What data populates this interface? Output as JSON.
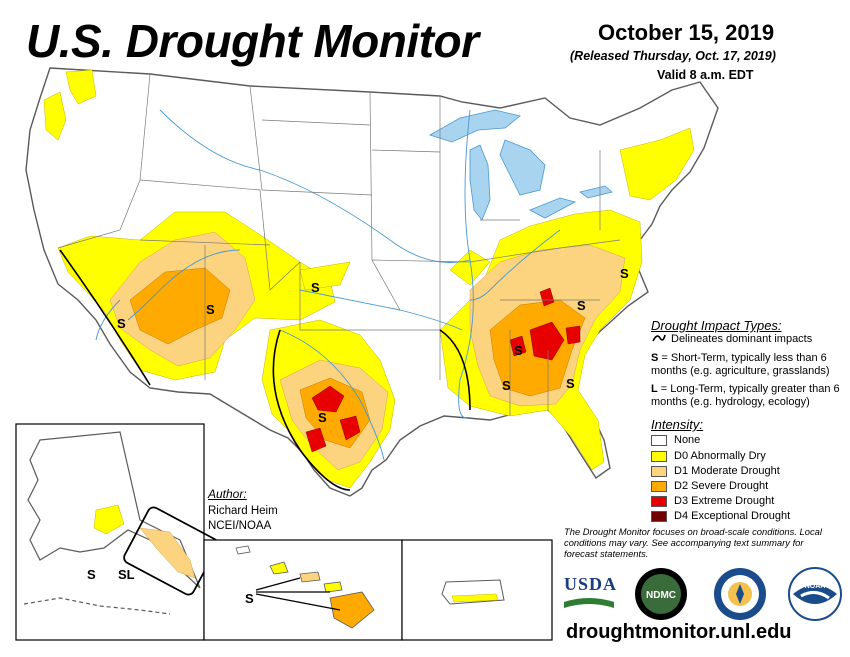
{
  "header": {
    "title": "U.S. Drought Monitor",
    "date": "October 15, 2019",
    "released": "(Released Thursday, Oct. 17, 2019)",
    "valid": "Valid 8 a.m. EDT"
  },
  "impact": {
    "title": "Drought Impact Types:",
    "delineates": "Delineates dominant impacts",
    "short_term_key": "S",
    "short_term": " = Short-Term, typically less than 6 months (e.g. agriculture, grasslands)",
    "long_term_key": "L",
    "long_term": " = Long-Term, typically greater than 6 months (e.g. hydrology, ecology)"
  },
  "intensity": {
    "title": "Intensity:",
    "items": [
      {
        "label": "None",
        "color": "#ffffff"
      },
      {
        "label": "D0 Abnormally Dry",
        "color": "#ffff00"
      },
      {
        "label": "D1 Moderate Drought",
        "color": "#fcd37f"
      },
      {
        "label": "D2 Severe Drought",
        "color": "#ffaa00"
      },
      {
        "label": "D3 Extreme Drought",
        "color": "#e60000"
      },
      {
        "label": "D4 Exceptional Drought",
        "color": "#730000"
      }
    ]
  },
  "author": {
    "heading": "Author:",
    "name": "Richard Heim",
    "org": "NCEI/NOAA"
  },
  "note": "The Drought Monitor focuses on broad-scale conditions. Local conditions may vary. See accompanying text summary for forecast statements.",
  "url": "droughtmonitor.unl.edu",
  "map_labels": {
    "s": "S",
    "sl": "SL"
  },
  "logos": {
    "usda": "USDA",
    "ndmc": "NDMC",
    "noaa": "NOAA"
  },
  "colors": {
    "water": "#a9d4f0",
    "river": "#4a98d0",
    "border": "#5a5a5a"
  }
}
